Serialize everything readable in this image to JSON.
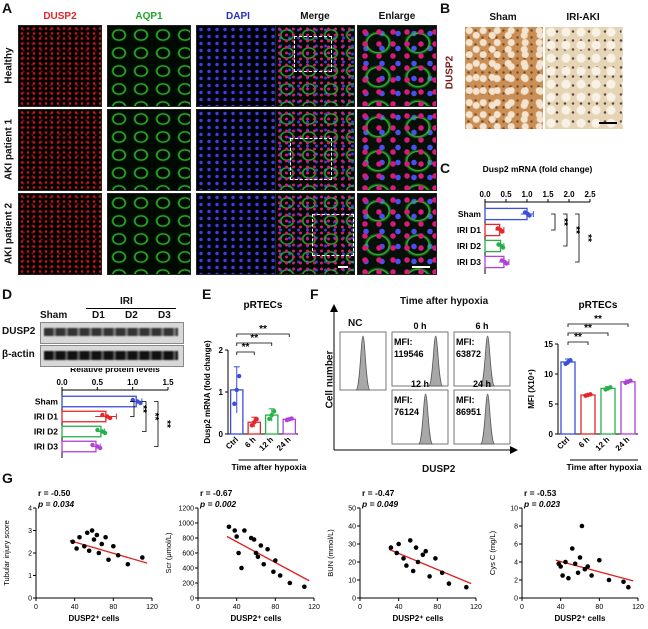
{
  "panels": {
    "A": {
      "letter": "A",
      "columns": [
        "DUSP2",
        "AQP1",
        "DAPI",
        "Merge",
        "Enlarge"
      ],
      "column_colors": [
        "#e0262a",
        "#1fa52b",
        "#2b2fbf",
        "#111111",
        "#111111"
      ],
      "rows": [
        "Healthy",
        "AKI patient 1",
        "AKI patient 2"
      ]
    },
    "B": {
      "letter": "B",
      "columns": [
        "Sham",
        "IRI-AKI"
      ],
      "ylabel": "DUSP2"
    },
    "C": {
      "letter": "C"
    },
    "D": {
      "letter": "D",
      "blot_headers": [
        "Sham",
        "D1",
        "D2",
        "D3"
      ],
      "iri_label": "IRI",
      "bands": [
        "DUSP2",
        "β-actin"
      ]
    },
    "E": {
      "letter": "E"
    },
    "F": {
      "letter": "F",
      "title": "Time  after hypoxia",
      "nc": "NC",
      "ylabel": "Cell number",
      "xlabel": "DUSP2",
      "mfi": [
        {
          "time": "0 h",
          "label": "MFI:",
          "value": "119546"
        },
        {
          "time": "6 h",
          "label": "MFI:",
          "value": "63872"
        },
        {
          "time": "12 h",
          "label": "MFI:",
          "value": "76124"
        },
        {
          "time": "24 h",
          "label": "MFI:",
          "value": "86951"
        }
      ]
    },
    "G": {
      "letter": "G"
    }
  },
  "chart_data": [
    {
      "id": "C",
      "type": "bar",
      "orientation": "horizontal",
      "title": "Dusp2 mRNA (fold change)",
      "categories": [
        "Sham",
        "IRI D1",
        "IRI D2",
        "IRI D3"
      ],
      "values": [
        1.0,
        0.35,
        0.37,
        0.45
      ],
      "errors": [
        0.15,
        0.1,
        0.08,
        0.12
      ],
      "colors": [
        "#3b4fd8",
        "#e5262a",
        "#27b04a",
        "#b040d8"
      ],
      "xlim": [
        0,
        2.5
      ],
      "ticks": [
        "0.0",
        "0.5",
        "1.0",
        "1.5",
        "2.0",
        "2.5"
      ],
      "sig": [
        "**",
        "**",
        "**"
      ]
    },
    {
      "id": "D",
      "type": "bar",
      "orientation": "horizontal",
      "xlabel": "Relative protein levels",
      "categories": [
        "Sham",
        "IRI D1",
        "IRI D2",
        "IRI D3"
      ],
      "values": [
        1.05,
        0.62,
        0.55,
        0.48
      ],
      "errors": [
        0.08,
        0.15,
        0.05,
        0.06
      ],
      "colors": [
        "#3b4fd8",
        "#e5262a",
        "#27b04a",
        "#b040d8"
      ],
      "xlim": [
        0,
        1.5
      ],
      "ticks": [
        "0.0",
        "0.5",
        "1.0",
        "1.5"
      ],
      "sig": [
        "**",
        "**",
        "**"
      ]
    },
    {
      "id": "E",
      "type": "bar",
      "title": "pRTECs",
      "ylabel": "Dusp2 mRNA (fold change)",
      "xlabel": "Time after hypoxia",
      "categories": [
        "Ctrl",
        "6 h",
        "12 h",
        "24 h"
      ],
      "values": [
        1.05,
        0.28,
        0.45,
        0.35
      ],
      "errors": [
        0.55,
        0.12,
        0.15,
        0.03
      ],
      "colors": [
        "#3b4fd8",
        "#e5262a",
        "#27b04a",
        "#b040d8"
      ],
      "ylim": [
        0,
        2.0
      ],
      "ticks": [
        "0",
        "1",
        "2"
      ],
      "sig": [
        "**",
        "**",
        "**"
      ]
    },
    {
      "id": "F",
      "type": "bar",
      "title": "pRTECs",
      "ylabel": "MFI (X10⁴)",
      "xlabel": "Time after hypoxia",
      "categories": [
        "Ctrl",
        "6 h",
        "12 h",
        "24 h"
      ],
      "values": [
        12.0,
        6.5,
        7.6,
        8.7
      ],
      "errors": [
        0.5,
        0.2,
        0.3,
        0.3
      ],
      "colors": [
        "#3b4fd8",
        "#e5262a",
        "#27b04a",
        "#b040d8"
      ],
      "ylim": [
        0,
        15
      ],
      "ticks": [
        "0",
        "5",
        "10",
        "15"
      ],
      "sig": [
        "**",
        "**",
        "**"
      ]
    },
    {
      "id": "G1",
      "type": "scatter",
      "ylabel": "Tubular injury score",
      "xlabel": "DUSP2⁺ cells",
      "r": "r = -0.50",
      "p": "p = 0.034",
      "xlim": [
        0,
        120
      ],
      "ylim": [
        0,
        4
      ],
      "xticks": [
        "0",
        "40",
        "80",
        "120"
      ],
      "yticks": [
        "0",
        "1",
        "2",
        "3",
        "4"
      ],
      "x": [
        38,
        42,
        45,
        50,
        53,
        55,
        58,
        60,
        63,
        65,
        68,
        72,
        75,
        80,
        85,
        95,
        110
      ],
      "y": [
        2.5,
        2.2,
        2.7,
        2.3,
        2.9,
        2.1,
        3.0,
        2.6,
        2.8,
        2.0,
        2.4,
        2.7,
        1.7,
        2.3,
        1.9,
        1.5,
        1.8
      ],
      "fit": [
        [
          35,
          2.55
        ],
        [
          115,
          1.55
        ]
      ]
    },
    {
      "id": "G2",
      "type": "scatter",
      "ylabel": "Scr (μmol/L)",
      "xlabel": "DUSP2⁺ cells",
      "r": "r = -0.67",
      "p": "p = 0.002",
      "xlim": [
        0,
        120
      ],
      "ylim": [
        0,
        1200
      ],
      "xticks": [
        "0",
        "40",
        "80",
        "120"
      ],
      "yticks": [
        "0",
        "200",
        "400",
        "600",
        "800",
        "1000",
        "1200"
      ],
      "x": [
        32,
        38,
        40,
        42,
        45,
        48,
        55,
        58,
        60,
        62,
        65,
        68,
        72,
        78,
        80,
        85,
        95,
        110
      ],
      "y": [
        950,
        900,
        820,
        600,
        400,
        900,
        800,
        780,
        600,
        550,
        700,
        450,
        650,
        350,
        500,
        300,
        200,
        150
      ],
      "fit": [
        [
          30,
          820
        ],
        [
          115,
          230
        ]
      ]
    },
    {
      "id": "G3",
      "type": "scatter",
      "ylabel": "BUN (mmol/L)",
      "xlabel": "DUSP2⁺ cells",
      "r": "r = -0.47",
      "p": "p = 0.049",
      "xlim": [
        0,
        120
      ],
      "ylim": [
        0,
        50
      ],
      "xticks": [
        "0",
        "40",
        "80",
        "120"
      ],
      "yticks": [
        "0",
        "10",
        "20",
        "30",
        "40",
        "50"
      ],
      "x": [
        32,
        38,
        40,
        45,
        48,
        52,
        55,
        58,
        60,
        65,
        68,
        72,
        78,
        85,
        92,
        110
      ],
      "y": [
        28,
        25,
        30,
        22,
        18,
        32,
        15,
        28,
        20,
        24,
        26,
        12,
        22,
        14,
        8,
        6
      ],
      "fit": [
        [
          30,
          27
        ],
        [
          115,
          8
        ]
      ]
    },
    {
      "id": "G4",
      "type": "scatter",
      "ylabel": "Cys C (mg/L)",
      "xlabel": "DUSP2⁺ cells",
      "r": "r = -0.53",
      "p": "p = 0.023",
      "xlim": [
        0,
        120
      ],
      "ylim": [
        0,
        10
      ],
      "xticks": [
        "0",
        "40",
        "80",
        "120"
      ],
      "yticks": [
        "0",
        "2",
        "4",
        "6",
        "8",
        "10"
      ],
      "x": [
        38,
        40,
        42,
        45,
        48,
        52,
        55,
        58,
        60,
        62,
        65,
        68,
        72,
        80,
        90,
        105,
        110
      ],
      "y": [
        3.8,
        3.5,
        2.5,
        4.0,
        2.2,
        5.5,
        3.8,
        2.8,
        4.5,
        8.0,
        3.2,
        3.5,
        2.5,
        4.2,
        2.0,
        1.8,
        1.2
      ],
      "fit": [
        [
          35,
          4.2
        ],
        [
          115,
          1.9
        ]
      ]
    }
  ]
}
